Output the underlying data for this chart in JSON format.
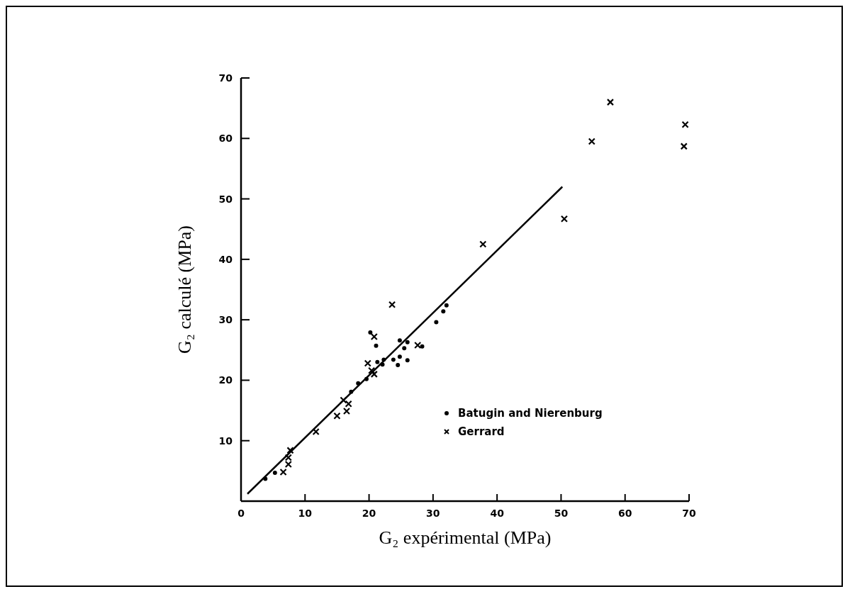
{
  "chart_data": {
    "type": "scatter",
    "xlabel": "G₂ expérimental (MPa)",
    "ylabel": "G₂ calculé (MPa)",
    "xlim": [
      0,
      70
    ],
    "xticks": [
      0,
      10,
      20,
      30,
      40,
      50,
      60,
      70
    ],
    "ylim": [
      0,
      70
    ],
    "yticks": [
      {
        "value": 0,
        "label": null
      },
      10,
      20,
      30,
      40,
      50,
      60,
      70
    ],
    "grid": false,
    "legend": "bottom right",
    "series": [
      {
        "name": "Batugin and Nierenburg",
        "color": "#000000",
        "marker": "circle",
        "x": [
          3.8,
          5.3,
          17.2,
          18.3,
          19.6,
          20.2,
          21.1,
          21.3,
          22.1,
          22.3,
          23.8,
          24.5,
          24.8,
          24.8,
          25.5,
          26.0,
          26.0,
          28.3,
          30.5,
          31.6,
          32.1
        ],
        "values": [
          3.7,
          4.7,
          18.1,
          19.5,
          20.2,
          27.9,
          25.7,
          23.0,
          22.6,
          23.4,
          23.4,
          22.5,
          23.9,
          26.6,
          25.3,
          26.3,
          23.3,
          25.6,
          29.6,
          31.4,
          32.4
        ]
      },
      {
        "name": "Gerrard",
        "color": "#000000",
        "marker": "cross",
        "x": [
          6.6,
          7.4,
          7.4,
          7.7,
          11.7,
          15.0,
          16.0,
          16.5,
          16.8,
          19.8,
          20.8,
          20.8,
          20.4,
          23.6,
          27.6,
          37.8,
          50.5,
          54.8,
          57.7,
          69.4,
          69.2
        ],
        "values": [
          4.8,
          6.1,
          7.2,
          8.4,
          11.5,
          14.1,
          16.7,
          14.9,
          16.1,
          22.8,
          27.2,
          21.0,
          21.6,
          32.5,
          25.8,
          42.5,
          46.7,
          59.5,
          66.0,
          62.3,
          58.7
        ]
      },
      {
        "type": "line",
        "color": "#000000",
        "marker": "none",
        "x": [
          1.0,
          50.2
        ],
        "values": [
          1.2,
          52.0
        ]
      }
    ]
  }
}
